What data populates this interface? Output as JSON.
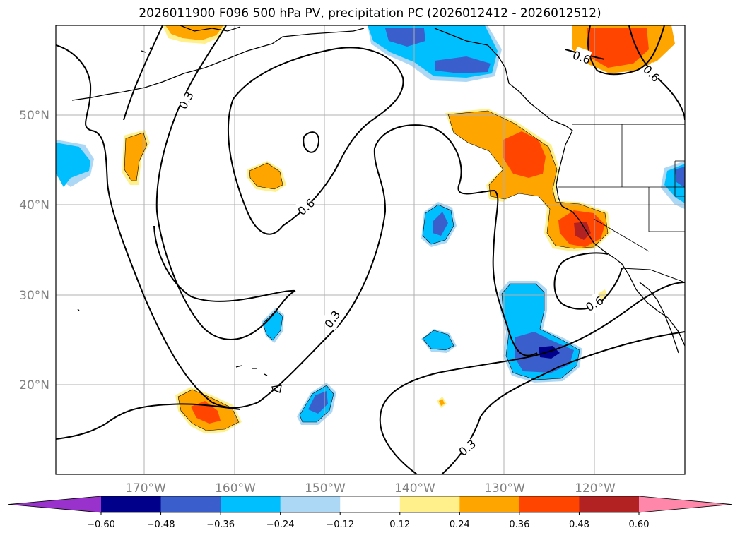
{
  "title": "2026011900 F096 500 hPa PV, precipitation PC (2026012412 - 2026012512)",
  "lat_labels": [
    "50°N",
    "40°N",
    "30°N",
    "20°N"
  ],
  "lon_labels": [
    "170°W",
    "160°W",
    "150°W",
    "140°W",
    "130°W",
    "120°W"
  ],
  "contour_labels": [
    "0.3",
    "0.6",
    "0.6",
    "0.3",
    "0.6",
    "0.3",
    "0.3",
    "0.6"
  ],
  "colorbar": {
    "ticks": [
      "−0.60",
      "−0.48",
      "−0.36",
      "−0.24",
      "−0.12",
      "0.12",
      "0.24",
      "0.36",
      "0.48",
      "0.60"
    ],
    "colors": [
      "#9932cc",
      "#00008b",
      "#3a5fcd",
      "#00bfff",
      "#add8f5",
      "#ffffff",
      "#fff08c",
      "#ffa500",
      "#ff4500",
      "#b22222",
      "#ff88aa"
    ]
  }
}
